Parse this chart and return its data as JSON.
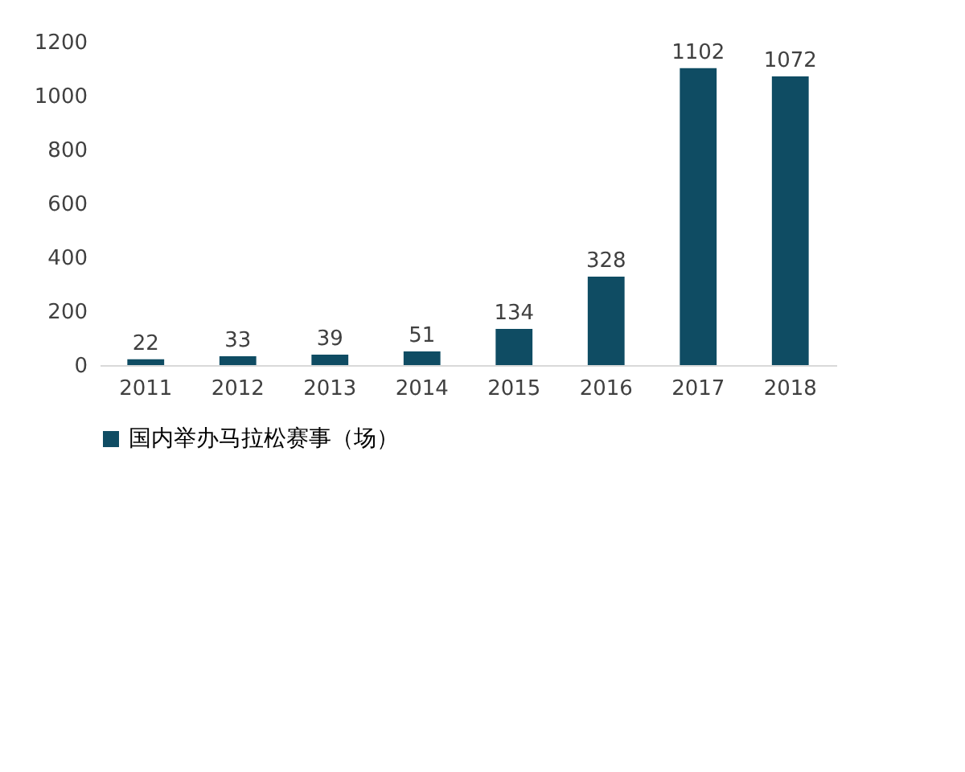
{
  "chart_data": {
    "type": "bar",
    "categories": [
      "2011",
      "2012",
      "2013",
      "2014",
      "2015",
      "2016",
      "2017",
      "2018"
    ],
    "series": [
      {
        "name": "国内举办马拉松赛事（场）",
        "color": "#0f4c63",
        "values": [
          22,
          33,
          39,
          51,
          134,
          328,
          1102,
          1072
        ]
      }
    ],
    "ylim": [
      0,
      1200
    ],
    "yticks": [
      0,
      200,
      400,
      600,
      800,
      1000,
      1200
    ],
    "data_labels": true,
    "grid": false,
    "legend": "bottom"
  }
}
